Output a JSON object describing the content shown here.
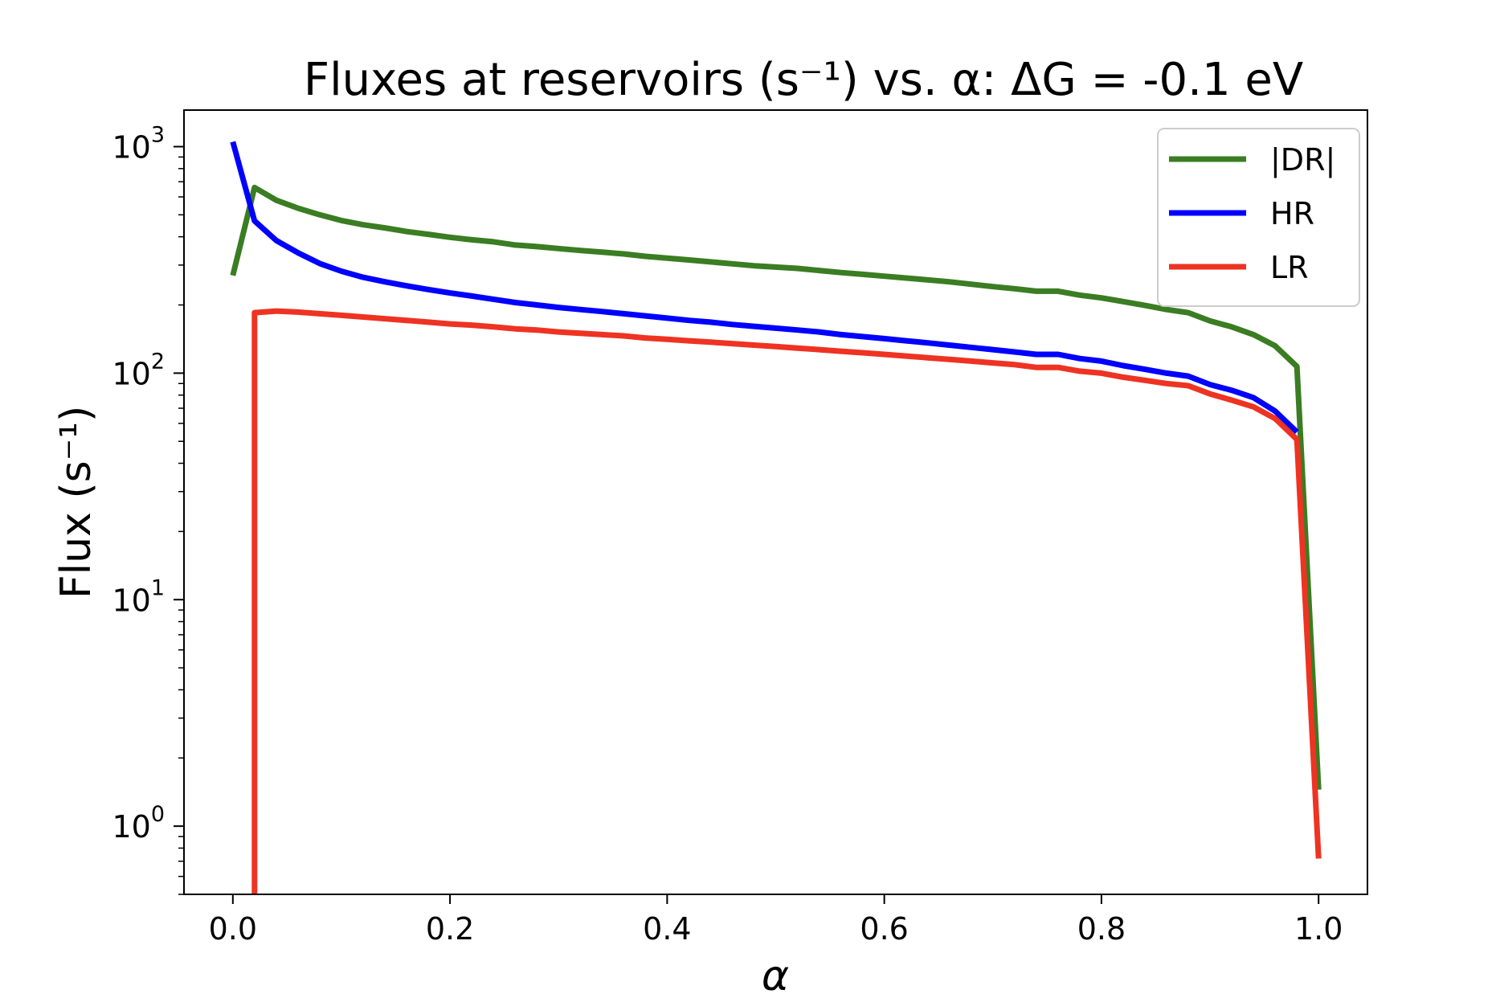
{
  "chart_data": {
    "type": "line",
    "title": "Fluxes at reservoirs (s⁻¹) vs. α: ΔG = -0.1 eV",
    "xlabel": "α",
    "ylabel": "Flux (s⁻¹)",
    "xlim": [
      -0.045,
      1.045
    ],
    "ylim": [
      0.5,
      1450
    ],
    "yscale": "log",
    "grid": false,
    "legend_position": "top-right",
    "x_ticks": [
      {
        "value": 0.0,
        "label": "0.0"
      },
      {
        "value": 0.2,
        "label": "0.2"
      },
      {
        "value": 0.4,
        "label": "0.4"
      },
      {
        "value": 0.6,
        "label": "0.6"
      },
      {
        "value": 0.8,
        "label": "0.8"
      },
      {
        "value": 1.0,
        "label": "1.0"
      }
    ],
    "y_ticks": [
      {
        "value": 1,
        "base": "10",
        "exp": "0"
      },
      {
        "value": 10,
        "base": "10",
        "exp": "1"
      },
      {
        "value": 100,
        "base": "10",
        "exp": "2"
      },
      {
        "value": 1000,
        "base": "10",
        "exp": "3"
      }
    ],
    "series": [
      {
        "name": "|DR|",
        "color": "#3a7d22",
        "points": [
          [
            0.0,
            270
          ],
          [
            0.02,
            660
          ],
          [
            0.04,
            580
          ],
          [
            0.06,
            535
          ],
          [
            0.08,
            500
          ],
          [
            0.1,
            472
          ],
          [
            0.12,
            452
          ],
          [
            0.14,
            438
          ],
          [
            0.16,
            422
          ],
          [
            0.18,
            410
          ],
          [
            0.2,
            398
          ],
          [
            0.22,
            388
          ],
          [
            0.24,
            380
          ],
          [
            0.26,
            368
          ],
          [
            0.28,
            362
          ],
          [
            0.3,
            355
          ],
          [
            0.32,
            348
          ],
          [
            0.34,
            342
          ],
          [
            0.36,
            336
          ],
          [
            0.38,
            328
          ],
          [
            0.4,
            322
          ],
          [
            0.42,
            316
          ],
          [
            0.44,
            310
          ],
          [
            0.46,
            304
          ],
          [
            0.48,
            298
          ],
          [
            0.5,
            294
          ],
          [
            0.52,
            290
          ],
          [
            0.54,
            284
          ],
          [
            0.56,
            278
          ],
          [
            0.58,
            273
          ],
          [
            0.6,
            268
          ],
          [
            0.62,
            263
          ],
          [
            0.64,
            258
          ],
          [
            0.66,
            253
          ],
          [
            0.68,
            247
          ],
          [
            0.7,
            241
          ],
          [
            0.72,
            236
          ],
          [
            0.74,
            230
          ],
          [
            0.76,
            230
          ],
          [
            0.78,
            221
          ],
          [
            0.8,
            215
          ],
          [
            0.82,
            207
          ],
          [
            0.84,
            199
          ],
          [
            0.86,
            191
          ],
          [
            0.88,
            185
          ],
          [
            0.9,
            170
          ],
          [
            0.92,
            160
          ],
          [
            0.94,
            148
          ],
          [
            0.96,
            132
          ],
          [
            0.98,
            107
          ],
          [
            1.0,
            1.45
          ]
        ]
      },
      {
        "name": "HR",
        "color": "#0000ff",
        "points": [
          [
            0.0,
            1050
          ],
          [
            0.02,
            470
          ],
          [
            0.04,
            385
          ],
          [
            0.06,
            340
          ],
          [
            0.08,
            305
          ],
          [
            0.1,
            282
          ],
          [
            0.12,
            265
          ],
          [
            0.14,
            253
          ],
          [
            0.16,
            243
          ],
          [
            0.18,
            234
          ],
          [
            0.2,
            226
          ],
          [
            0.22,
            219
          ],
          [
            0.24,
            212
          ],
          [
            0.26,
            205
          ],
          [
            0.28,
            200
          ],
          [
            0.3,
            195
          ],
          [
            0.32,
            191
          ],
          [
            0.34,
            187
          ],
          [
            0.36,
            183
          ],
          [
            0.38,
            179
          ],
          [
            0.4,
            175
          ],
          [
            0.42,
            171
          ],
          [
            0.44,
            168
          ],
          [
            0.46,
            164
          ],
          [
            0.48,
            161
          ],
          [
            0.5,
            158
          ],
          [
            0.52,
            155
          ],
          [
            0.54,
            152
          ],
          [
            0.56,
            148
          ],
          [
            0.58,
            145
          ],
          [
            0.6,
            142
          ],
          [
            0.62,
            139
          ],
          [
            0.64,
            136
          ],
          [
            0.66,
            133
          ],
          [
            0.68,
            130
          ],
          [
            0.7,
            127
          ],
          [
            0.72,
            124
          ],
          [
            0.74,
            121
          ],
          [
            0.76,
            121
          ],
          [
            0.78,
            116
          ],
          [
            0.8,
            113
          ],
          [
            0.82,
            108
          ],
          [
            0.84,
            104
          ],
          [
            0.86,
            100
          ],
          [
            0.88,
            97
          ],
          [
            0.9,
            89
          ],
          [
            0.92,
            84
          ],
          [
            0.94,
            78
          ],
          [
            0.96,
            68
          ],
          [
            0.98,
            55
          ]
        ]
      },
      {
        "name": "LR",
        "color": "#ee3322",
        "points": [
          [
            0.02,
            0.5
          ],
          [
            0.02,
            185
          ],
          [
            0.04,
            188
          ],
          [
            0.06,
            186
          ],
          [
            0.08,
            183
          ],
          [
            0.1,
            180
          ],
          [
            0.12,
            177
          ],
          [
            0.14,
            174
          ],
          [
            0.16,
            171
          ],
          [
            0.18,
            168
          ],
          [
            0.2,
            165
          ],
          [
            0.22,
            163
          ],
          [
            0.24,
            160
          ],
          [
            0.26,
            157
          ],
          [
            0.28,
            155
          ],
          [
            0.3,
            152
          ],
          [
            0.32,
            150
          ],
          [
            0.34,
            148
          ],
          [
            0.36,
            146
          ],
          [
            0.38,
            143
          ],
          [
            0.4,
            141
          ],
          [
            0.42,
            139
          ],
          [
            0.44,
            137
          ],
          [
            0.46,
            135
          ],
          [
            0.48,
            133
          ],
          [
            0.5,
            131
          ],
          [
            0.52,
            129
          ],
          [
            0.54,
            127
          ],
          [
            0.56,
            125
          ],
          [
            0.58,
            123
          ],
          [
            0.6,
            121
          ],
          [
            0.62,
            119
          ],
          [
            0.64,
            117
          ],
          [
            0.66,
            115
          ],
          [
            0.68,
            113
          ],
          [
            0.7,
            111
          ],
          [
            0.72,
            109
          ],
          [
            0.74,
            106
          ],
          [
            0.76,
            106
          ],
          [
            0.78,
            102
          ],
          [
            0.8,
            100
          ],
          [
            0.82,
            96
          ],
          [
            0.84,
            93
          ],
          [
            0.86,
            90
          ],
          [
            0.88,
            88
          ],
          [
            0.9,
            81
          ],
          [
            0.92,
            76
          ],
          [
            0.94,
            71
          ],
          [
            0.96,
            63
          ],
          [
            0.98,
            51
          ],
          [
            1.0,
            0.72
          ]
        ]
      }
    ]
  }
}
